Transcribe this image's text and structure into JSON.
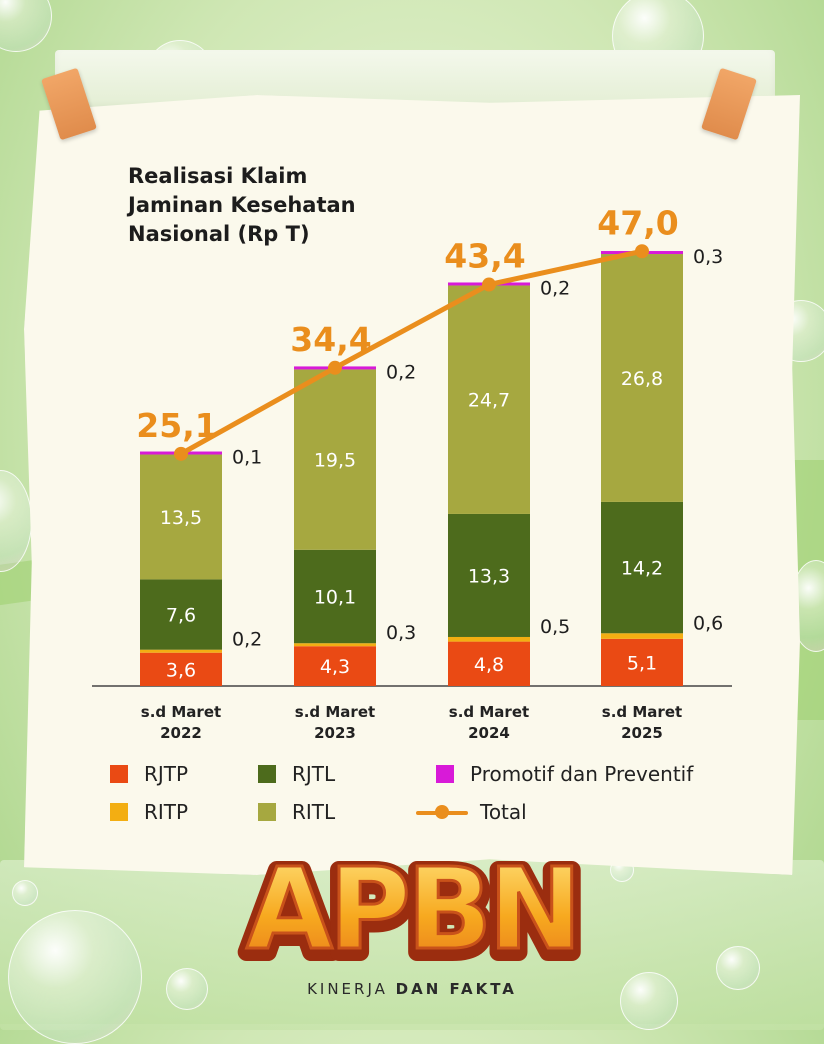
{
  "chart_data": {
    "type": "stacked-bar-with-line",
    "title_lines": [
      "Realisasi Klaim",
      "Jaminan Kesehatan",
      "Nasional (Rp T)"
    ],
    "categories": [
      {
        "line1": "s.d Maret",
        "line2": "2022"
      },
      {
        "line1": "s.d Maret",
        "line2": "2023"
      },
      {
        "line1": "s.d Maret",
        "line2": "2024"
      },
      {
        "line1": "s.d Maret",
        "line2": "2025"
      }
    ],
    "series": [
      {
        "name": "RJTP",
        "color": "#ea4a14",
        "values": [
          3.6,
          4.3,
          4.8,
          5.1
        ],
        "labels": [
          "3,6",
          "4,3",
          "4,8",
          "5,1"
        ],
        "label_position": "inside"
      },
      {
        "name": "RITP",
        "color": "#f3ae12",
        "values": [
          0.2,
          0.3,
          0.5,
          0.6
        ],
        "labels": [
          "0,2",
          "0,3",
          "0,5",
          "0,6"
        ],
        "label_position": "right"
      },
      {
        "name": "RJTL",
        "color": "#4d6b1c",
        "values": [
          7.6,
          10.1,
          13.3,
          14.2
        ],
        "labels": [
          "7,6",
          "10,1",
          "13,3",
          "14,2"
        ],
        "label_position": "inside"
      },
      {
        "name": "RITL",
        "color": "#a6a840",
        "values": [
          13.5,
          19.5,
          24.7,
          26.8
        ],
        "labels": [
          "13,5",
          "19,5",
          "24,7",
          "26,8"
        ],
        "label_position": "inside"
      },
      {
        "name": "Promotif dan Preventif",
        "color": "#d81ad8",
        "values": [
          0.1,
          0.2,
          0.2,
          0.3
        ],
        "labels": [
          "0,1",
          "0,2",
          "0,2",
          "0,3"
        ],
        "label_position": "right"
      }
    ],
    "total": {
      "name": "Total",
      "color": "#ea8e1d",
      "values": [
        25.1,
        34.4,
        43.4,
        47.0
      ],
      "labels": [
        "25,1",
        "34,4",
        "43,4",
        "47,0"
      ]
    },
    "legend": [
      {
        "name": "RJTP",
        "color": "#ea4a14",
        "kind": "square"
      },
      {
        "name": "RJTL",
        "color": "#4d6b1c",
        "kind": "square"
      },
      {
        "name": "Promotif dan Preventif",
        "color": "#d81ad8",
        "kind": "square"
      },
      {
        "name": "RITP",
        "color": "#f3ae12",
        "kind": "square"
      },
      {
        "name": "RITL",
        "color": "#a6a840",
        "kind": "square"
      },
      {
        "name": "Total",
        "color": "#ea8e1d",
        "kind": "line"
      }
    ],
    "legend_position": "bottom",
    "grid": false,
    "ylim": [
      0,
      47
    ]
  },
  "branding": {
    "logo_text": "APBN",
    "tagline_regular": "KINERJA ",
    "tagline_bold": "DAN FAKTA"
  }
}
